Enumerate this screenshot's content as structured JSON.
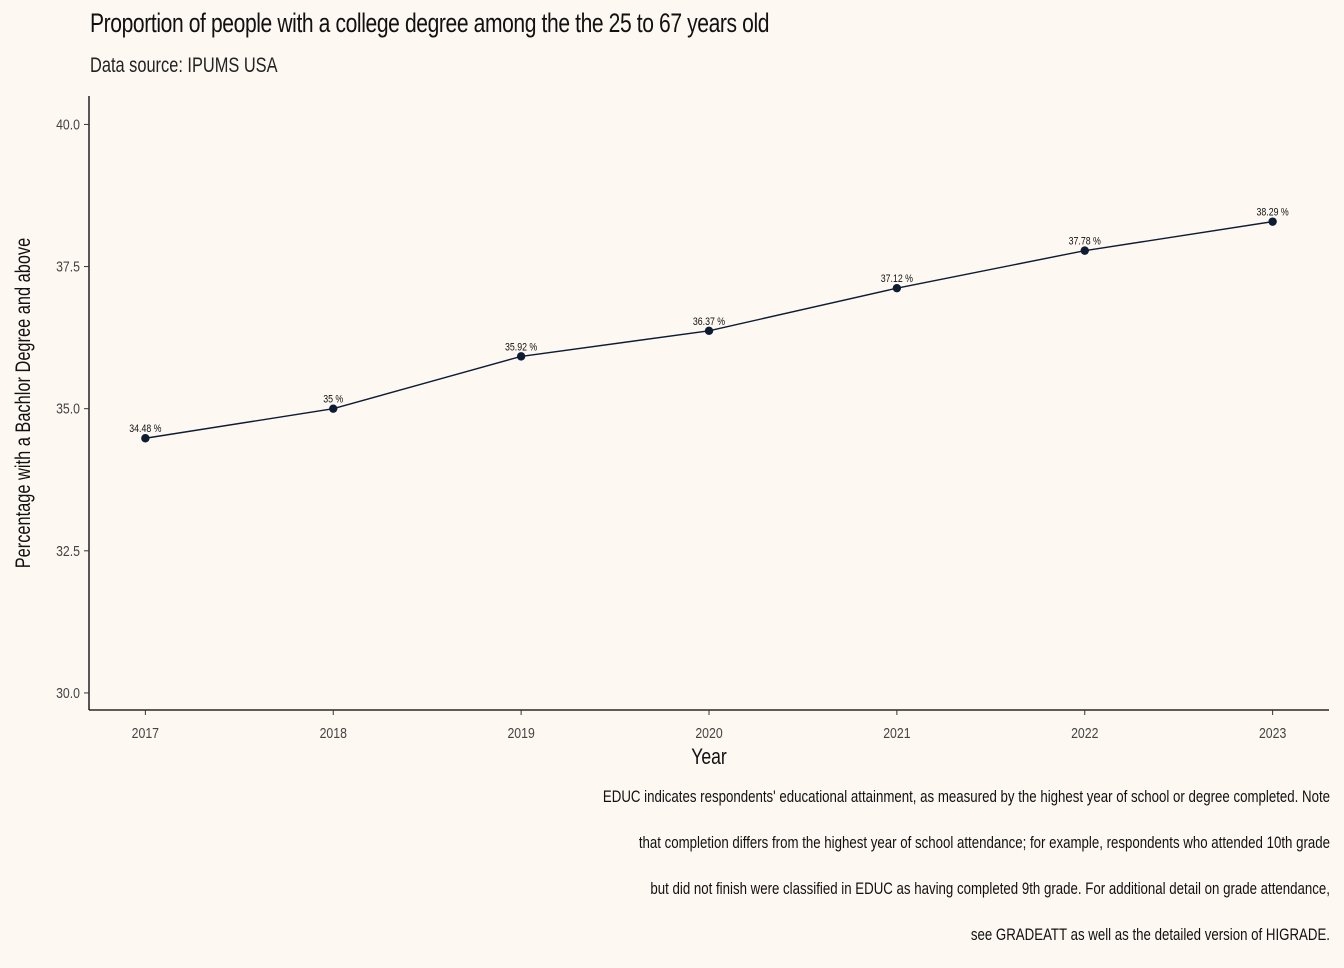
{
  "chart_data": {
    "type": "line",
    "title": "Proportion of people with a college degree among the the 25 to 67 years old",
    "subtitle": "Data source: IPUMS USA",
    "xlabel": "Year",
    "ylabel": "Percentage with a Bachlor Degree and above",
    "x": [
      2017,
      2018,
      2019,
      2020,
      2021,
      2022,
      2023
    ],
    "x_tick_labels": [
      "2017",
      "2018",
      "2019",
      "2020",
      "2021",
      "2022",
      "2023"
    ],
    "y": [
      34.48,
      35.0,
      35.92,
      36.37,
      37.12,
      37.78,
      38.29
    ],
    "point_labels": [
      "34.48 %",
      "35 %",
      "35.92 %",
      "36.37 %",
      "37.12 %",
      "37.78 %",
      "38.29 %"
    ],
    "y_ticks": [
      30.0,
      32.5,
      35.0,
      37.5,
      40.0
    ],
    "y_tick_labels": [
      "30.0",
      "32.5",
      "35.0",
      "37.5",
      "40.0"
    ],
    "ylim": [
      29.7,
      40.5
    ],
    "grid": false,
    "line_color": "#0d1b33",
    "caption": [
      "EDUC indicates respondents' educational attainment, as measured by the highest year of school or degree completed. Note",
      "that completion differs from the highest year of school attendance; for example, respondents who attended 10th grade",
      "but did not finish were classified in EDUC as having completed 9th grade. For additional detail on grade attendance,",
      "see GRADEATT as well as the detailed version of HIGRADE."
    ]
  }
}
